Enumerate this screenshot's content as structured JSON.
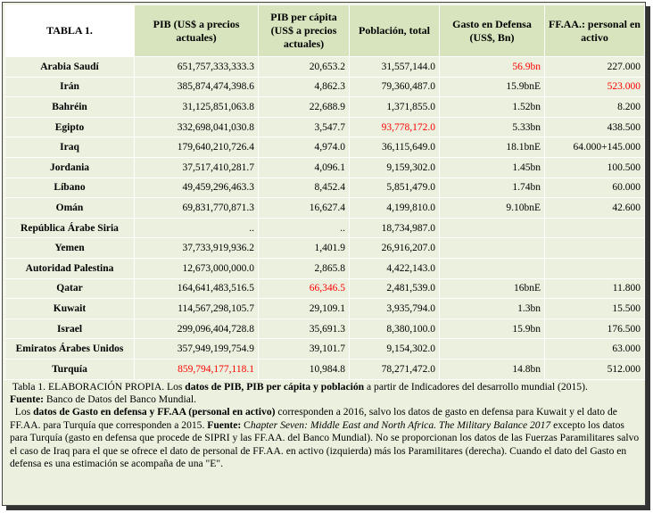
{
  "table": {
    "header": [
      "TABLA 1.",
      "PIB (US$ a precios actuales)",
      "PIB per cápita (US$ a precios actuales)",
      "Población, total",
      "Gasto en Defensa (US$, Bn)",
      "FF.AA.: personal en activo"
    ],
    "rows": [
      [
        "Arabia Saudí",
        "651,757,333,333.3",
        "20,653.2",
        "31,557,144.0",
        "56.9bn",
        "227.000"
      ],
      [
        "Irán",
        "385,874,474,398.6",
        "4,862.3",
        "79,360,487.0",
        "15.9bnE",
        "523.000"
      ],
      [
        "Bahréin",
        "31,125,851,063.8",
        "22,688.9",
        "1,371,855.0",
        "1.52bn",
        "8.200"
      ],
      [
        "Egipto",
        "332,698,041,030.8",
        "3,547.7",
        "93,778,172.0",
        "5.33bn",
        "438.500"
      ],
      [
        "Iraq",
        "179,640,210,726.4",
        "4,974.0",
        "36,115,649.0",
        "18.1bnE",
        "64.000+145.000"
      ],
      [
        "Jordania",
        "37,517,410,281.7",
        "4,096.1",
        "9,159,302.0",
        "1.45bn",
        "100.500"
      ],
      [
        "Líbano",
        "49,459,296,463.3",
        "8,452.4",
        "5,851,479.0",
        "1.74bn",
        "60.000"
      ],
      [
        "Omán",
        "69,831,770,871.3",
        "16,627.4",
        "4,199,810.0",
        "9.10bnE",
        "42.600"
      ],
      [
        "República Árabe Siria",
        "..",
        "..",
        "18,734,987.0",
        null,
        null
      ],
      [
        "Yemen",
        "37,733,919,936.2",
        "1,401.9",
        "26,916,207.0",
        null,
        null
      ],
      [
        "Autoridad Palestina",
        "12,673,000,000.0",
        "2,865.8",
        "4,422,143.0",
        null,
        null
      ],
      [
        "Qatar",
        "164,641,483,516.5",
        "66,346.5",
        "2,481,539.0",
        "16bnE",
        "11.800"
      ],
      [
        "Kuwait",
        "114,567,298,105.7",
        "29,109.1",
        "3,935,794.0",
        "1.3bn",
        "15.500"
      ],
      [
        "Israel",
        "299,096,404,728.8",
        "35,691.3",
        "8,380,100.0",
        "15.9bn",
        "176.500"
      ],
      [
        "Emiratos Árabes Unidos",
        "357,949,199,754.9",
        "39,101.7",
        "9,154,302.0",
        null,
        "63.000"
      ],
      [
        "Turquía",
        "859,794,177,118.1",
        "10,984.8",
        "78,271,472.0",
        "14.8bn",
        "512.000"
      ]
    ],
    "highlight_color": "#ff0000",
    "highlight_cells": [
      [
        0,
        4
      ],
      [
        1,
        5
      ],
      [
        3,
        3
      ],
      [
        11,
        2
      ],
      [
        15,
        1
      ]
    ]
  },
  "footnote": {
    "p1": [
      "Tabla 1. ELABORACIÓN PROPIA. Los ",
      "datos de PIB, PIB per cápita y población",
      " a partir de Indicadores del desarrollo mundial (2015)."
    ],
    "p2": [
      "Fuente:",
      " Banco de Datos del Banco   Mundial."
    ],
    "p3": [
      "Los ",
      "datos de Gasto en defensa y FF.AA (personal en activo)",
      " corresponden a 2016, salvo los datos de gasto en defensa para Kuwait y el dato de FF.AA.  para Turquía que   corresponden a 2015. ",
      "Fuente:",
      " C",
      "hapter Seven: Middle East and North Africa. The Military Balance 2017",
      "  excepto los datos para Turquía (gasto en defensa que procede de SIPRI y las FF.AA. del Banco Mundial). No se proporcionan los datos de las Fuerzas Paramilitares salvo el caso de Iraq para el que se ofrece el dato de personal de FF.AA. en activo (izquierda) más los Paramilitares (derecha). Cuando el dato del Gasto en defensa es una estimación se acompaña de una \"E\"."
    ]
  }
}
